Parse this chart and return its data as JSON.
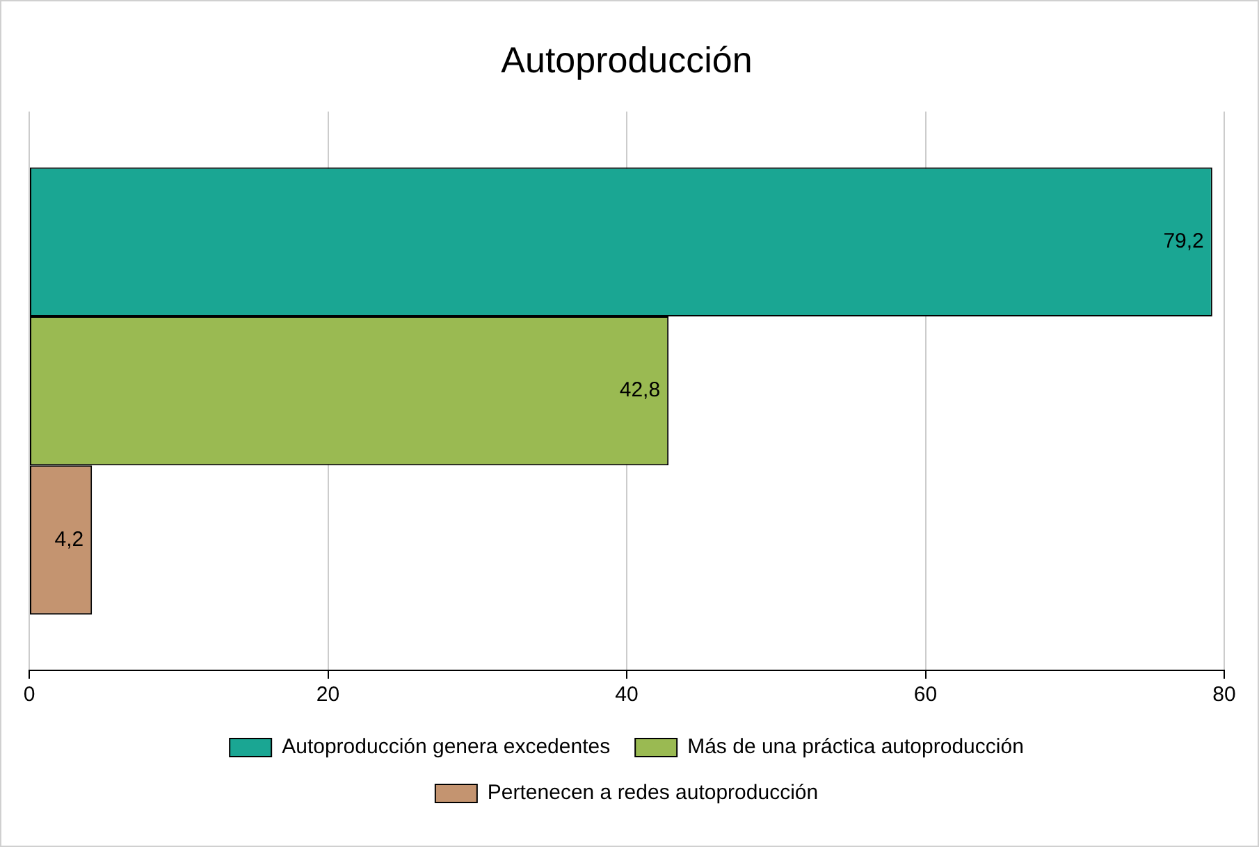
{
  "chart_data": {
    "type": "bar",
    "orientation": "horizontal",
    "title": "Autoproducción",
    "categories": [
      null
    ],
    "series": [
      {
        "name": "Autoproducción genera excedentes",
        "color": "#1aa693",
        "values": [
          79.2
        ],
        "value_labels": [
          "79,2"
        ]
      },
      {
        "name": "Más de una práctica autoproducción",
        "color": "#9aba52",
        "values": [
          42.8
        ],
        "value_labels": [
          "42,8"
        ]
      },
      {
        "name": "Pertenecen a redes autoproducción",
        "color": "#c49470",
        "values": [
          4.2
        ],
        "value_labels": [
          "4,2"
        ]
      }
    ],
    "xlim": [
      0,
      80
    ],
    "xticks": [
      0,
      20,
      40,
      60,
      80
    ],
    "grid": "x",
    "legend": "bottom",
    "tick_labels": "x"
  }
}
